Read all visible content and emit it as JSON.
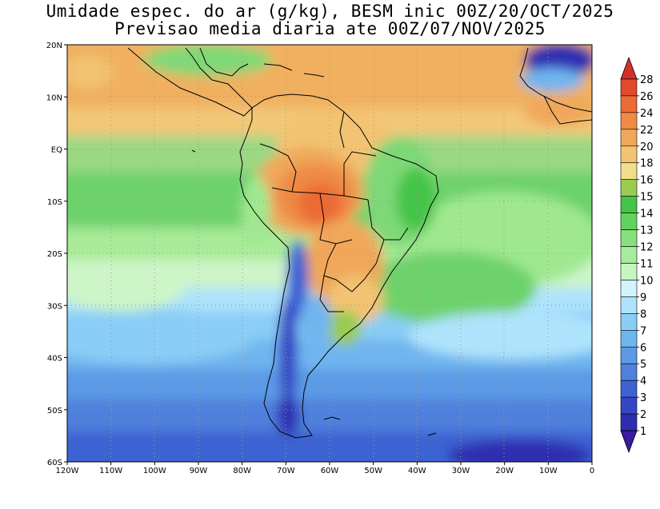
{
  "title": {
    "line1": "Umidade espec. do ar (g/kg), BESM inic 00Z/20/OCT/2025",
    "line2": "Previsao media diaria ate 00Z/07/NOV/2025"
  },
  "map": {
    "lon_range": [
      -120,
      0
    ],
    "lat_range": [
      -60,
      20
    ],
    "lat_labels": [
      "20N",
      "10N",
      "EQ",
      "10S",
      "20S",
      "30S",
      "40S",
      "50S",
      "60S"
    ],
    "lon_labels": [
      "120W",
      "110W",
      "100W",
      "90W",
      "80W",
      "70W",
      "60W",
      "50W",
      "40W",
      "30W",
      "20W",
      "10W",
      "0"
    ]
  },
  "colorbar": {
    "labels": [
      "1",
      "2",
      "3",
      "4",
      "5",
      "6",
      "7",
      "8",
      "9",
      "10",
      "11",
      "12",
      "13",
      "14",
      "15",
      "16",
      "18",
      "20",
      "22",
      "24",
      "26",
      "28"
    ],
    "colors": [
      "#3a1ba0",
      "#2d2db0",
      "#3446c4",
      "#3e62d2",
      "#4f80dc",
      "#5c9ae6",
      "#6fb5ef",
      "#8acdf6",
      "#aee3fb",
      "#d2f3fa",
      "#c6f5c0",
      "#a6ec9d",
      "#86e07e",
      "#62d25f",
      "#45c44a",
      "#9acc4e",
      "#f2dd8a",
      "#f2c372",
      "#f0a75a",
      "#ef8a45",
      "#ec6a34",
      "#e14a2a",
      "#d3302a"
    ]
  }
}
